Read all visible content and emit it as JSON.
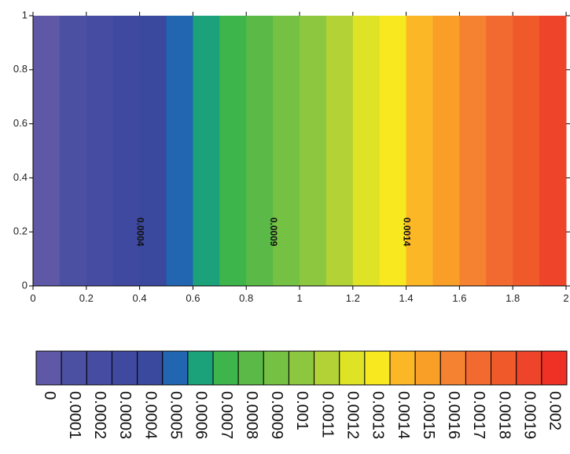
{
  "chart_data": {
    "type": "contour",
    "x_edges": [
      0,
      0.1,
      0.2,
      0.3,
      0.4,
      0.5,
      0.6,
      0.7,
      0.8,
      0.9,
      1,
      1.1,
      1.2,
      1.3,
      1.4,
      1.5,
      1.6,
      1.7,
      1.8,
      1.9,
      2
    ],
    "levels": [
      0,
      0.0001,
      0.0002,
      0.0003,
      0.0004,
      0.0005,
      0.0006,
      0.0007,
      0.0008,
      0.0009,
      0.001,
      0.0011,
      0.0012,
      0.0013,
      0.0014,
      0.0015,
      0.0016,
      0.0017,
      0.0018,
      0.0019,
      0.002
    ],
    "colors": [
      "#5e58a6",
      "#4c50a2",
      "#464ca1",
      "#4049a0",
      "#3a489e",
      "#2265b0",
      "#1ba27b",
      "#3eb54a",
      "#5bba47",
      "#74c143",
      "#8dc63f",
      "#b2d235",
      "#dfe325",
      "#f8e81f",
      "#fbb726",
      "#f99e27",
      "#f58230",
      "#f26a2f",
      "#f05a2b",
      "#ee452a",
      "#ee3124"
    ],
    "contour_labels": [
      {
        "value": 0.0004,
        "x": 0.4,
        "y": 0.2
      },
      {
        "value": 0.0009,
        "x": 0.9,
        "y": 0.2
      },
      {
        "value": 0.0014,
        "x": 1.4,
        "y": 0.2
      }
    ],
    "xlim": [
      0,
      2
    ],
    "ylim": [
      0,
      1
    ],
    "xticks": [
      0,
      0.2,
      0.4,
      0.6,
      0.8,
      1,
      1.2,
      1.4,
      1.6,
      1.8,
      2
    ],
    "yticks": [
      0,
      0.2,
      0.4,
      0.6,
      0.8,
      1
    ]
  }
}
